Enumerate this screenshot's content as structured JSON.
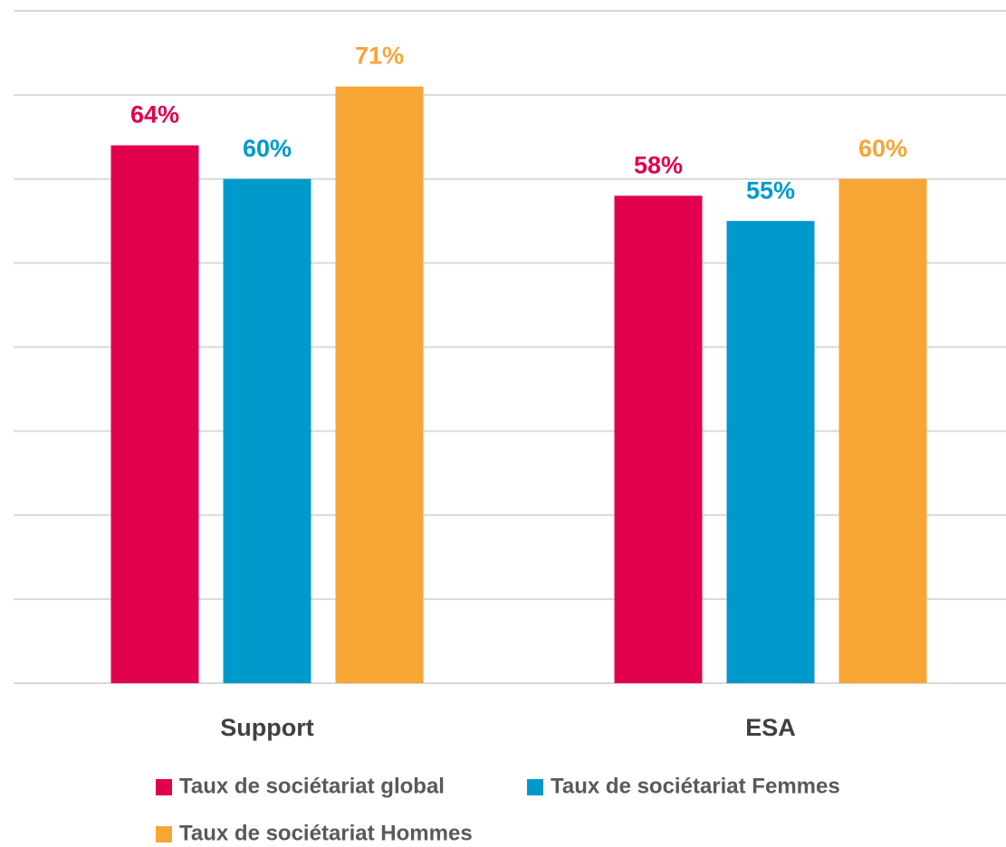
{
  "chart_data": {
    "type": "bar",
    "categories": [
      "Support",
      "ESA"
    ],
    "series": [
      {
        "name": "Taux de sociétariat global",
        "color": "#e0004d",
        "values": [
          64,
          58
        ],
        "value_labels": [
          "64%",
          "58%"
        ]
      },
      {
        "name": "Taux de sociétariat Femmes",
        "color": "#0099cc",
        "values": [
          60,
          55
        ],
        "value_labels": [
          "60%",
          "55%"
        ]
      },
      {
        "name": "Taux de sociétariat Hommes",
        "color": "#f7a535",
        "values": [
          71,
          60
        ],
        "value_labels": [
          "71%",
          "60%"
        ]
      }
    ],
    "ylim": [
      0,
      80
    ],
    "yticks": [
      0,
      10,
      20,
      30,
      40,
      50,
      60,
      70,
      80
    ],
    "grid": true,
    "legend": "bottom"
  }
}
